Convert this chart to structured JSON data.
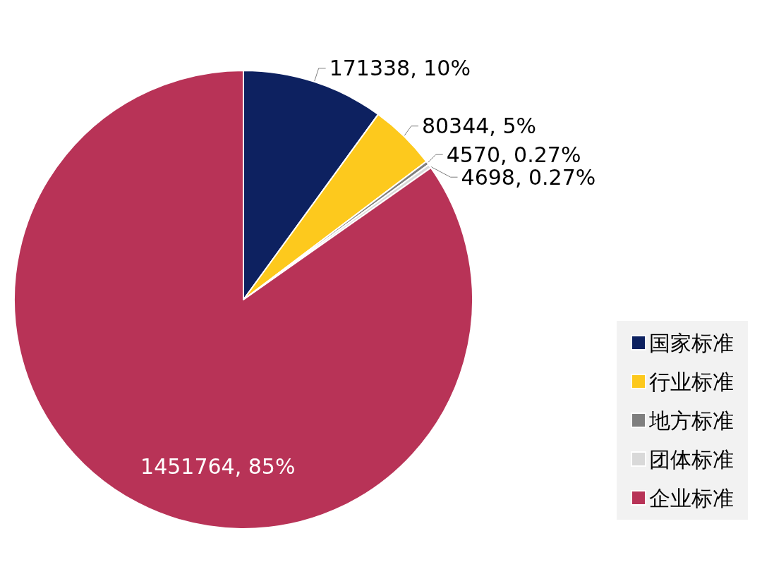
{
  "chart_data": {
    "type": "pie",
    "categories": [
      "国家标准",
      "行业标准",
      "地方标准",
      "团体标准",
      "企业标准"
    ],
    "values": [
      171338,
      80344,
      4570,
      4698,
      1451764
    ],
    "colors": [
      "#0d2160",
      "#fdc91d",
      "#7f7f7f",
      "#d9d9d9",
      "#b83357"
    ],
    "value_labels": [
      "171338, 10%",
      "80344, 5%",
      "4570, 0.27%",
      "4698, 0.27%",
      "1451764, 85%"
    ],
    "legend": "bottom right"
  }
}
